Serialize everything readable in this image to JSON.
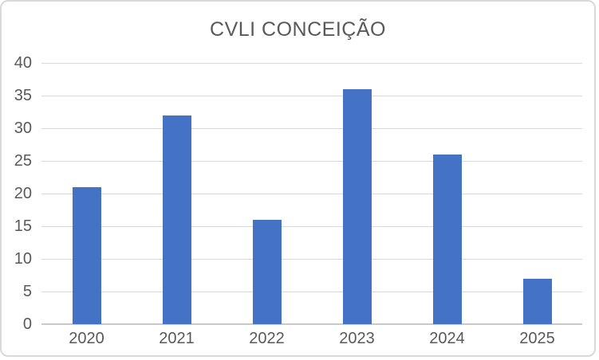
{
  "chart": {
    "title": "CVLI CONCEIÇÃO"
  },
  "colors": {
    "bar": "#4472C4",
    "gridline": "#D9D9D9",
    "axis_line": "#C9C9C9",
    "text": "#595959",
    "frame_border": "#D9D9D9",
    "background": "#FFFFFF"
  },
  "chart_data": {
    "type": "bar",
    "title": "CVLI CONCEIÇÃO",
    "categories": [
      "2020",
      "2021",
      "2022",
      "2023",
      "2024",
      "2025"
    ],
    "values": [
      21,
      32,
      16,
      36,
      26,
      7
    ],
    "xlabel": "",
    "ylabel": "",
    "ylim": [
      0,
      40
    ],
    "ytick_step": 5,
    "grid": true,
    "legend": false
  }
}
